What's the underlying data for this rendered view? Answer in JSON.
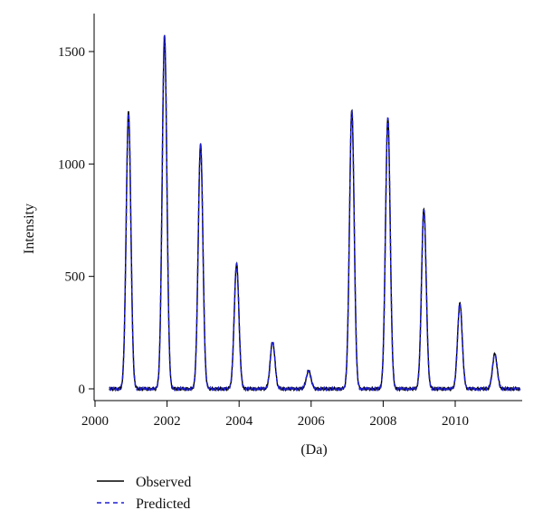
{
  "chart_data": {
    "type": "line",
    "xlabel": "(Da)",
    "ylabel": "Intensity",
    "xlim": [
      2000.4,
      2011.8
    ],
    "ylim": [
      -30,
      1580
    ],
    "xticks": [
      2000,
      2002,
      2004,
      2006,
      2008,
      2010
    ],
    "yticks": [
      0,
      500,
      1000,
      1500
    ],
    "grid": false,
    "legend_position": "bottom-left",
    "peaks": [
      {
        "x": 2000.93,
        "y": 1230
      },
      {
        "x": 2001.93,
        "y": 1570
      },
      {
        "x": 2002.93,
        "y": 1090
      },
      {
        "x": 2003.93,
        "y": 555
      },
      {
        "x": 2004.93,
        "y": 210
      },
      {
        "x": 2005.93,
        "y": 80
      },
      {
        "x": 2007.13,
        "y": 1240
      },
      {
        "x": 2008.13,
        "y": 1205
      },
      {
        "x": 2009.13,
        "y": 800
      },
      {
        "x": 2010.13,
        "y": 380
      },
      {
        "x": 2011.1,
        "y": 155
      }
    ],
    "series": [
      {
        "name": "Observed",
        "color": "#000000",
        "style": "solid"
      },
      {
        "name": "Predicted",
        "color": "#1f1fd6",
        "style": "dashed"
      }
    ]
  }
}
